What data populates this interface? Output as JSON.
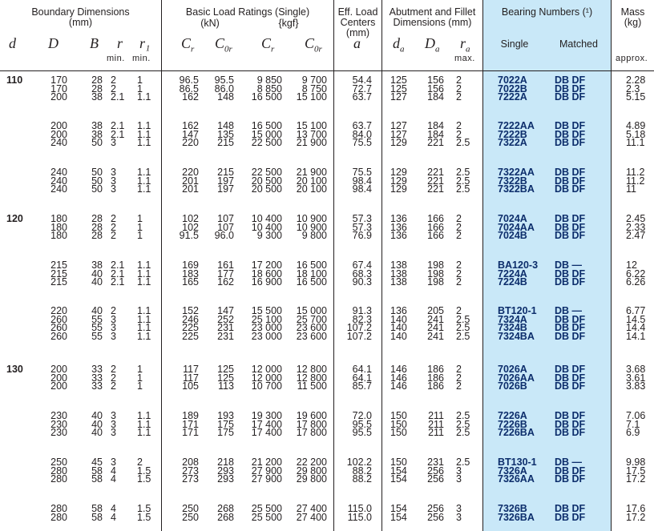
{
  "header": {
    "boundary_dimensions": "Boundary Dimensions",
    "boundary_unit": "(mm)",
    "load_ratings": "Basic Load Ratings (Single)",
    "unit_kn": "(kN)",
    "unit_kgf": "{kgf}",
    "eff_load_l1": "Eff. Load",
    "eff_load_l2": "Centers",
    "eff_load_l3": "(mm)",
    "abutment_l1": "Abutment and Fillet",
    "abutment_l2": "Dimensions (mm)",
    "bearing_numbers": "Bearing Numbers (¹)",
    "mass_l1": "Mass",
    "mass_l2": "(kg)",
    "single": "Single",
    "matched": "Matched",
    "min1": "min.",
    "min2": "min.",
    "max": "max.",
    "approx": "approx."
  },
  "symbols": {
    "d": "d",
    "D": "D",
    "B": "B",
    "r": "r",
    "r1": "r₁",
    "Cr": "C",
    "Cr_sub": "r",
    "C0r": "C",
    "C0r_sub": "0r",
    "Cr2": "C",
    "Cr2_sub": "r",
    "C0r2": "C",
    "C0r2_sub": "0r",
    "a": "a",
    "da": "d",
    "da_sub": "a",
    "Da": "D",
    "Da_sub": "a",
    "ra": "r",
    "ra_sub": "a"
  },
  "groups": [
    {
      "d": "110",
      "D": [
        "170",
        "170",
        "200"
      ],
      "B": [
        "28",
        "28",
        "38"
      ],
      "r": [
        "2",
        "2",
        "2.1"
      ],
      "r1": [
        "1",
        "1",
        "1.1"
      ],
      "cr_kn": [
        "96.5",
        "86.5",
        "162"
      ],
      "c0r_kn": [
        "95.5",
        "86.0",
        "148"
      ],
      "cr_kgf": [
        "9 850",
        "8 850",
        "16 500"
      ],
      "c0r_kgf": [
        "9 700",
        "8 750",
        "15 100"
      ],
      "a": [
        "54.4",
        "72.7",
        "63.7"
      ],
      "da": [
        "125",
        "125",
        "127"
      ],
      "Da": [
        "156",
        "156",
        "184"
      ],
      "ra": [
        "2",
        "2",
        "2"
      ],
      "single": [
        "7022A",
        "7022B",
        "7222A"
      ],
      "matched": [
        "DB DF",
        "DB DF",
        "DB DF"
      ],
      "mass": [
        "2.28",
        "2.3",
        "5.15"
      ]
    },
    {
      "d": "",
      "D": [
        "200",
        "200",
        "240"
      ],
      "B": [
        "38",
        "38",
        "50"
      ],
      "r": [
        "2.1",
        "2.1",
        "3"
      ],
      "r1": [
        "1.1",
        "1.1",
        "1.1"
      ],
      "cr_kn": [
        "162",
        "147",
        "220"
      ],
      "c0r_kn": [
        "148",
        "135",
        "215"
      ],
      "cr_kgf": [
        "16 500",
        "15 000",
        "22 500"
      ],
      "c0r_kgf": [
        "15 100",
        "13 700",
        "21 900"
      ],
      "a": [
        "63.7",
        "84.0",
        "75.5"
      ],
      "da": [
        "127",
        "127",
        "129"
      ],
      "Da": [
        "184",
        "184",
        "221"
      ],
      "ra": [
        "2",
        "2",
        "2.5"
      ],
      "single": [
        "7222AA",
        "7222B",
        "7322A"
      ],
      "matched": [
        "DB DF",
        "DB DF",
        "DB DF"
      ],
      "mass": [
        "4.89",
        "5.18",
        "11.1"
      ]
    },
    {
      "d": "",
      "D": [
        "240",
        "240",
        "240"
      ],
      "B": [
        "50",
        "50",
        "50"
      ],
      "r": [
        "3",
        "3",
        "3"
      ],
      "r1": [
        "1.1",
        "1.1",
        "1.1"
      ],
      "cr_kn": [
        "220",
        "201",
        "201"
      ],
      "c0r_kn": [
        "215",
        "197",
        "197"
      ],
      "cr_kgf": [
        "22 500",
        "20 500",
        "20 500"
      ],
      "c0r_kgf": [
        "21 900",
        "20 100",
        "20 100"
      ],
      "a": [
        "75.5",
        "98.4",
        "98.4"
      ],
      "da": [
        "129",
        "129",
        "129"
      ],
      "Da": [
        "221",
        "221",
        "221"
      ],
      "ra": [
        "2.5",
        "2.5",
        "2.5"
      ],
      "single": [
        "7322AA",
        "7322B",
        "7322BA"
      ],
      "matched": [
        "DB DF",
        "DB DF",
        "DB DF"
      ],
      "mass": [
        "11.2",
        "11.2",
        "11"
      ]
    },
    {
      "d": "120",
      "D": [
        "180",
        "180",
        "180"
      ],
      "B": [
        "28",
        "28",
        "28"
      ],
      "r": [
        "2",
        "2",
        "2"
      ],
      "r1": [
        "1",
        "1",
        "1"
      ],
      "cr_kn": [
        "102",
        "102",
        "91.5"
      ],
      "c0r_kn": [
        "107",
        "107",
        "96.0"
      ],
      "cr_kgf": [
        "10 400",
        "10 400",
        "9 300"
      ],
      "c0r_kgf": [
        "10 900",
        "10 900",
        "9 800"
      ],
      "a": [
        "57.3",
        "57.3",
        "76.9"
      ],
      "da": [
        "136",
        "136",
        "136"
      ],
      "Da": [
        "166",
        "166",
        "166"
      ],
      "ra": [
        "2",
        "2",
        "2"
      ],
      "single": [
        "7024A",
        "7024AA",
        "7024B"
      ],
      "matched": [
        "DB DF",
        "DB DF",
        "DB DF"
      ],
      "mass": [
        "2.45",
        "2.33",
        "2.47"
      ]
    },
    {
      "d": "",
      "D": [
        "215",
        "215",
        "215"
      ],
      "B": [
        "38",
        "40",
        "40"
      ],
      "r": [
        "2.1",
        "2.1",
        "2.1"
      ],
      "r1": [
        "1.1",
        "1.1",
        "1.1"
      ],
      "cr_kn": [
        "169",
        "183",
        "165"
      ],
      "c0r_kn": [
        "161",
        "177",
        "162"
      ],
      "cr_kgf": [
        "17 200",
        "18 600",
        "16 900"
      ],
      "c0r_kgf": [
        "16 500",
        "18 100",
        "16 500"
      ],
      "a": [
        "67.4",
        "68.3",
        "90.3"
      ],
      "da": [
        "138",
        "138",
        "138"
      ],
      "Da": [
        "198",
        "198",
        "198"
      ],
      "ra": [
        "2",
        "2",
        "2"
      ],
      "single": [
        "BA120-3",
        "7224A",
        "7224B"
      ],
      "matched": [
        "DB —",
        "DB DF",
        "DB DF"
      ],
      "mass": [
        "12",
        "6.22",
        "6.26"
      ]
    },
    {
      "d": "",
      "D": [
        "220",
        "260",
        "260",
        "260"
      ],
      "B": [
        "40",
        "55",
        "55",
        "55"
      ],
      "r": [
        "2",
        "3",
        "3",
        "3"
      ],
      "r1": [
        "1.1",
        "1.1",
        "1.1",
        "1.1"
      ],
      "cr_kn": [
        "152",
        "246",
        "225",
        "225"
      ],
      "c0r_kn": [
        "147",
        "252",
        "231",
        "231"
      ],
      "cr_kgf": [
        "15 500",
        "25 100",
        "23 000",
        "23 000"
      ],
      "c0r_kgf": [
        "15 000",
        "25 700",
        "23 600",
        "23 600"
      ],
      "a": [
        "91.3",
        "82.3",
        "107.2",
        "107.2"
      ],
      "da": [
        "136",
        "140",
        "140",
        "140"
      ],
      "Da": [
        "205",
        "241",
        "241",
        "241"
      ],
      "ra": [
        "2",
        "2.5",
        "2.5",
        "2.5"
      ],
      "single": [
        "BT120-1",
        "7324A",
        "7324B",
        "7324BA"
      ],
      "matched": [
        "DB —",
        "DB DF",
        "DB DF",
        "DB DF"
      ],
      "mass": [
        "6.77",
        "14.5",
        "14.4",
        "14.1"
      ]
    },
    {
      "d": "130",
      "D": [
        "200",
        "200",
        "200"
      ],
      "B": [
        "33",
        "33",
        "33"
      ],
      "r": [
        "2",
        "2",
        "2"
      ],
      "r1": [
        "1",
        "1",
        "1"
      ],
      "cr_kn": [
        "117",
        "117",
        "105"
      ],
      "c0r_kn": [
        "125",
        "125",
        "113"
      ],
      "cr_kgf": [
        "12 000",
        "12 000",
        "10 700"
      ],
      "c0r_kgf": [
        "12 800",
        "12 800",
        "11 500"
      ],
      "a": [
        "64.1",
        "64.1",
        "85.7"
      ],
      "da": [
        "146",
        "146",
        "146"
      ],
      "Da": [
        "186",
        "186",
        "186"
      ],
      "ra": [
        "2",
        "2",
        "2"
      ],
      "single": [
        "7026A",
        "7026AA",
        "7026B"
      ],
      "matched": [
        "DB DF",
        "DB DF",
        "DB DF"
      ],
      "mass": [
        "3.68",
        "3.61",
        "3.83"
      ]
    },
    {
      "d": "",
      "D": [
        "230",
        "230",
        "230"
      ],
      "B": [
        "40",
        "40",
        "40"
      ],
      "r": [
        "3",
        "3",
        "3"
      ],
      "r1": [
        "1.1",
        "1.1",
        "1.1"
      ],
      "cr_kn": [
        "189",
        "171",
        "171"
      ],
      "c0r_kn": [
        "193",
        "175",
        "175"
      ],
      "cr_kgf": [
        "19 300",
        "17 400",
        "17 400"
      ],
      "c0r_kgf": [
        "19 600",
        "17 800",
        "17 800"
      ],
      "a": [
        "72.0",
        "95.5",
        "95.5"
      ],
      "da": [
        "150",
        "150",
        "150"
      ],
      "Da": [
        "211",
        "211",
        "211"
      ],
      "ra": [
        "2.5",
        "2.5",
        "2.5"
      ],
      "single": [
        "7226A",
        "7226B",
        "7226BA"
      ],
      "matched": [
        "DB DF",
        "DB DF",
        "DB DF"
      ],
      "mass": [
        "7.06",
        "7.1",
        "6.9"
      ]
    },
    {
      "d": "",
      "D": [
        "250",
        "280",
        "280"
      ],
      "B": [
        "45",
        "58",
        "58"
      ],
      "r": [
        "3",
        "4",
        "4"
      ],
      "r1": [
        "2",
        "1.5",
        "1.5"
      ],
      "cr_kn": [
        "208",
        "273",
        "273"
      ],
      "c0r_kn": [
        "218",
        "293",
        "293"
      ],
      "cr_kgf": [
        "21 200",
        "27 900",
        "27 900"
      ],
      "c0r_kgf": [
        "22 200",
        "29 800",
        "29 800"
      ],
      "a": [
        "102.2",
        "88.2",
        "88.2"
      ],
      "da": [
        "150",
        "154",
        "154"
      ],
      "Da": [
        "231",
        "256",
        "256"
      ],
      "ra": [
        "2.5",
        "3",
        "3"
      ],
      "single": [
        "BT130-1",
        "7326A",
        "7326AA"
      ],
      "matched": [
        "DB —",
        "DB DF",
        "DB DF"
      ],
      "mass": [
        "9.98",
        "17.5",
        "17.2"
      ]
    },
    {
      "d": "",
      "D": [
        "280",
        "280"
      ],
      "B": [
        "58",
        "58"
      ],
      "r": [
        "4",
        "4"
      ],
      "r1": [
        "1.5",
        "1.5"
      ],
      "cr_kn": [
        "250",
        "250"
      ],
      "c0r_kn": [
        "268",
        "268"
      ],
      "cr_kgf": [
        "25 500",
        "25 500"
      ],
      "c0r_kgf": [
        "27 400",
        "27 400"
      ],
      "a": [
        "115.0",
        "115.0"
      ],
      "da": [
        "154",
        "154"
      ],
      "Da": [
        "256",
        "256"
      ],
      "ra": [
        "3",
        "3"
      ],
      "single": [
        "7326B",
        "7326BA"
      ],
      "matched": [
        "DB DF",
        "DB DF"
      ],
      "mass": [
        "17.6",
        "17.2"
      ]
    }
  ]
}
